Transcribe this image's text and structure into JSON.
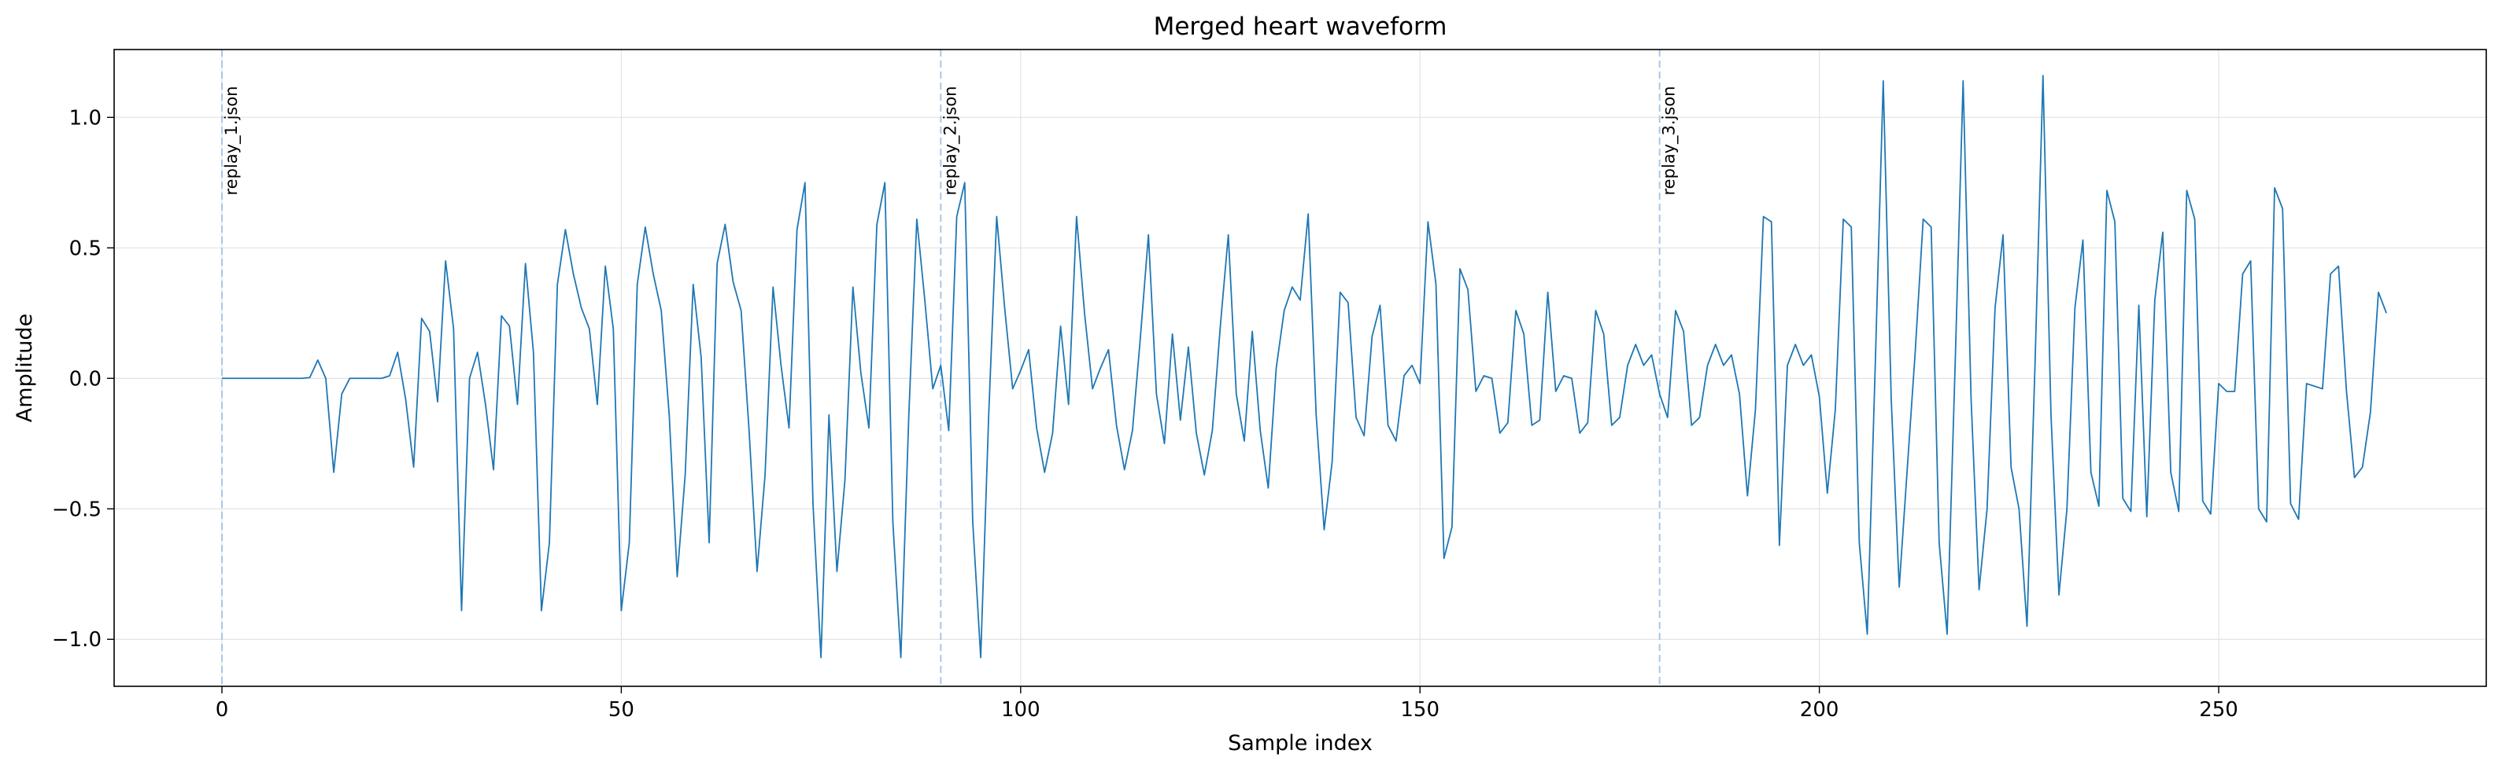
{
  "chart_data": {
    "type": "line",
    "title": "Merged heart waveform",
    "xlabel": "Sample index",
    "ylabel": "Amplitude",
    "xlim": [
      -13.5,
      283.5
    ],
    "ylim": [
      -1.18,
      1.26
    ],
    "x_ticks": [
      0,
      50,
      100,
      150,
      200,
      250
    ],
    "y_ticks": [
      -1.0,
      -0.5,
      0.0,
      0.5,
      1.0
    ],
    "x_tick_labels": [
      "0",
      "50",
      "100",
      "150",
      "200",
      "250"
    ],
    "y_tick_labels": [
      "−1.0",
      "−0.5",
      "0.0",
      "0.5",
      "1.0"
    ],
    "grid": true,
    "line_color": "#1f77b4",
    "marker_color": "#a6c8e8",
    "markers": [
      {
        "x": 0,
        "label": "replay_1.json"
      },
      {
        "x": 90,
        "label": "replay_2.json"
      },
      {
        "x": 180,
        "label": "replay_3.json"
      }
    ],
    "series": [
      {
        "values": [
          0,
          0,
          0,
          0,
          0,
          0,
          0,
          0,
          0,
          0,
          0,
          0.003,
          0.07,
          0,
          -0.36,
          -0.06,
          0,
          0,
          0,
          0,
          0,
          0.01,
          0.1,
          -0.08,
          -0.34,
          0.23,
          0.18,
          -0.09,
          0.45,
          0.19,
          -0.89,
          0,
          0.1,
          -0.1,
          -0.35,
          0.24,
          0.2,
          -0.1,
          0.44,
          0.1,
          -0.89,
          -0.63,
          0.36,
          0.57,
          0.4,
          0.27,
          0.19,
          -0.1,
          0.43,
          0.19,
          -0.89,
          -0.63,
          0.36,
          0.58,
          0.4,
          0.26,
          -0.14,
          -0.76,
          -0.37,
          0.36,
          0.08,
          -0.63,
          0.44,
          0.59,
          0.37,
          0.26,
          -0.2,
          -0.74,
          -0.37,
          0.35,
          0.05,
          -0.19,
          0.57,
          0.75,
          -0.48,
          -1.07,
          -0.14,
          -0.74,
          -0.39,
          0.35,
          0.02,
          -0.19,
          0.59,
          0.75,
          -0.55,
          -1.07,
          -0.14,
          0.61,
          0.3,
          -0.04,
          0.05,
          -0.2,
          0.62,
          0.75,
          -0.55,
          -1.07,
          -0.14,
          0.62,
          0.27,
          -0.04,
          0.03,
          0.11,
          -0.19,
          -0.36,
          -0.21,
          0.2,
          -0.1,
          0.62,
          0.25,
          -0.04,
          0.04,
          0.11,
          -0.18,
          -0.35,
          -0.2,
          0.16,
          0.55,
          -0.06,
          -0.25,
          0.17,
          -0.16,
          0.12,
          -0.21,
          -0.37,
          -0.2,
          0.2,
          0.55,
          -0.06,
          -0.24,
          0.18,
          -0.2,
          -0.42,
          0.04,
          0.26,
          0.35,
          0.3,
          0.63,
          -0.14,
          -0.58,
          -0.32,
          0.33,
          0.29,
          -0.15,
          -0.22,
          0.16,
          0.28,
          -0.18,
          -0.24,
          0.01,
          0.05,
          -0.02,
          0.6,
          0.36,
          -0.69,
          -0.57,
          0.42,
          0.34,
          -0.05,
          0.01,
          0,
          -0.21,
          -0.17,
          0.26,
          0.17,
          -0.18,
          -0.16,
          0.33,
          -0.05,
          0.01,
          0,
          -0.21,
          -0.17,
          0.26,
          0.17,
          -0.18,
          -0.15,
          0.05,
          0.13,
          0.05,
          0.09,
          -0.06,
          -0.15,
          0.26,
          0.18,
          -0.18,
          -0.15,
          0.05,
          0.13,
          0.05,
          0.09,
          -0.06,
          -0.45,
          -0.12,
          0.62,
          0.6,
          -0.64,
          0.05,
          0.13,
          0.05,
          0.09,
          -0.07,
          -0.44,
          -0.12,
          0.61,
          0.58,
          -0.63,
          -0.98,
          0.05,
          1.14,
          -0.08,
          -0.8,
          -0.35,
          0.1,
          0.61,
          0.58,
          -0.63,
          -0.98,
          0.05,
          1.14,
          -0.08,
          -0.81,
          -0.5,
          0.27,
          0.55,
          -0.34,
          -0.5,
          -0.95,
          0.05,
          1.16,
          -0.14,
          -0.83,
          -0.5,
          0.27,
          0.53,
          -0.36,
          -0.49,
          0.72,
          0.6,
          -0.46,
          -0.51,
          0.28,
          -0.53,
          0.3,
          0.56,
          -0.36,
          -0.51,
          0.72,
          0.61,
          -0.47,
          -0.52,
          -0.02,
          -0.05,
          -0.05,
          0.4,
          0.45,
          -0.5,
          -0.55,
          0.73,
          0.65,
          -0.48,
          -0.54,
          -0.02,
          -0.03,
          -0.04,
          0.4,
          0.43,
          -0.05,
          -0.38,
          -0.34,
          -0.13,
          0.33,
          0.25
        ]
      }
    ]
  }
}
